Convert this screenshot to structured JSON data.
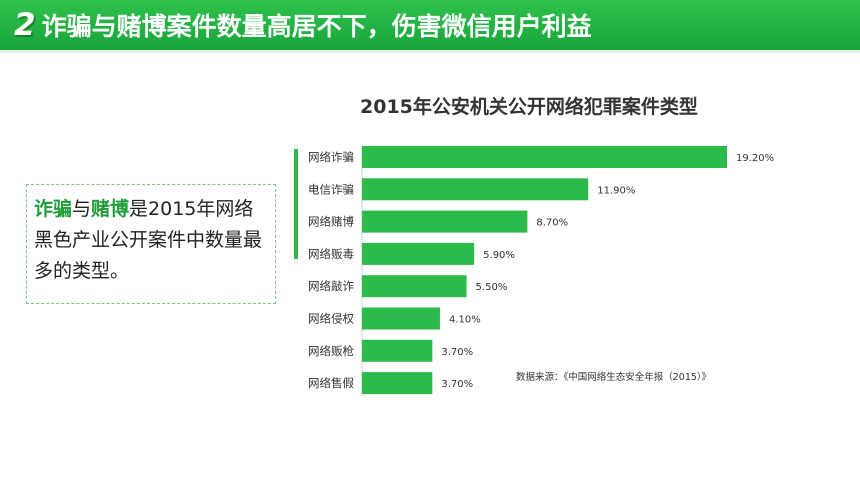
{
  "header": {
    "number": "2",
    "title": "诈骗与赌博案件数量高居不下，伤害微信用户利益"
  },
  "callout": {
    "highlight1": "诈骗",
    "connector": "与",
    "highlight2": "赌博",
    "rest": "是2015年网络黑色产业公开案件中数量最多的类型。"
  },
  "source_note": "数据来源：《中国网络生态安全年报（2015）》",
  "colors": {
    "accent": "#1eb842",
    "bar": "#2cbb4a",
    "highlight": "#1e9e38"
  },
  "chart_data": {
    "type": "bar",
    "orientation": "horizontal",
    "title": "2015年公安机关公开网络犯罪案件类型",
    "categories": [
      "网络诈骗",
      "电信诈骗",
      "网络赌博",
      "网络贩毒",
      "网络敲诈",
      "网络侵权",
      "网络贩枪",
      "网络售假"
    ],
    "values": [
      19.2,
      11.9,
      8.7,
      5.9,
      5.5,
      4.1,
      3.7,
      3.7
    ],
    "value_labels": [
      "19.20%",
      "11.90%",
      "8.70%",
      "5.90%",
      "5.50%",
      "4.10%",
      "3.70%",
      "3.70%"
    ],
    "unit": "%",
    "xlim": [
      0,
      19.2
    ],
    "grid": false,
    "legend": "none"
  }
}
